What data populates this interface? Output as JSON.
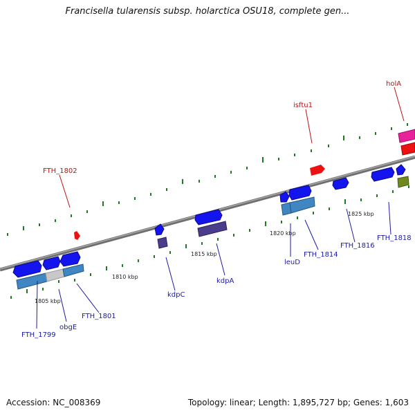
{
  "title": "Francisella tularensis subsp. holarctica OSU18, complete gen...",
  "footer": {
    "accession": "Accession: NC_008369",
    "summary": "Topology: linear; Length: 1,895,727 bp; Genes: 1,603"
  },
  "colors": {
    "forward_gene": "#1414ee",
    "reverse_gene": "#1414ee",
    "cds_light": "#3f86c2",
    "cds_dark": "#4a3d8c",
    "pseudo": "#c8c8c8",
    "rna": "#ee1111",
    "mobile": "#e8229a",
    "other": "#6e8a1e",
    "tick": "#1f7a1f",
    "label_blue": "#1a1aa6",
    "label_red": "#c01010",
    "backbone": "#808080"
  },
  "scale_labels": [
    "1805 kbp",
    "1810 kbp",
    "1815 kbp",
    "1820 kbp",
    "1825 kbp"
  ],
  "gene_labels": [
    {
      "text": "FTH_1799",
      "color": "blue"
    },
    {
      "text": "obgE",
      "color": "blue"
    },
    {
      "text": "FTH_1801",
      "color": "blue"
    },
    {
      "text": "FTH_1802",
      "color": "red"
    },
    {
      "text": "kdpC",
      "color": "blue"
    },
    {
      "text": "kdpA",
      "color": "blue"
    },
    {
      "text": "leuD",
      "color": "blue"
    },
    {
      "text": "FTH_1814",
      "color": "blue"
    },
    {
      "text": "isftu1",
      "color": "red"
    },
    {
      "text": "FTH_1816",
      "color": "blue"
    },
    {
      "text": "FTH_1818",
      "color": "blue"
    },
    {
      "text": "holA",
      "color": "red"
    }
  ]
}
